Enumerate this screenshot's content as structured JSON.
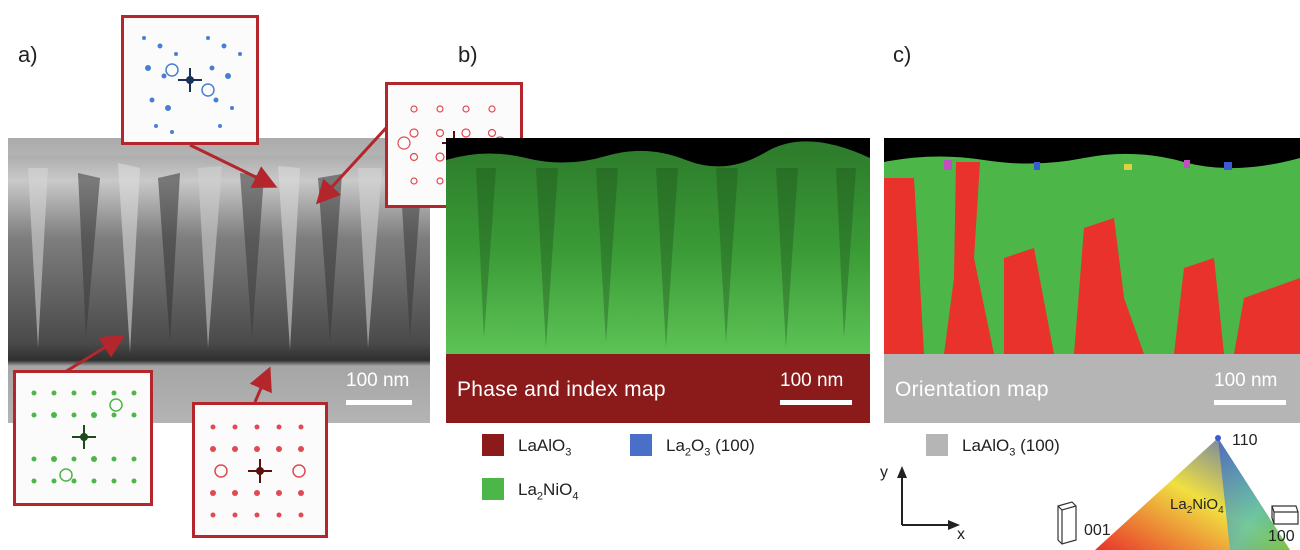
{
  "panels": {
    "a": {
      "label": "a)",
      "scalebar": "100 nm"
    },
    "b": {
      "label": "b)",
      "band_title": "Phase and index map",
      "scalebar": "100 nm"
    },
    "c": {
      "label": "c)",
      "band_title": "Orientation map",
      "scalebar": "100 nm"
    }
  },
  "legend_b": [
    {
      "name": "LaAlO",
      "sub": "3",
      "tail": "",
      "color": "#8b1a1a"
    },
    {
      "name": "La",
      "sub": "2",
      "mid": "O",
      "sub2": "3",
      "tail": " (100)",
      "color": "#4a6fc8"
    },
    {
      "name": "La",
      "sub": "2",
      "mid": "NiO",
      "sub2": "4",
      "tail": "",
      "color": "#4cb648"
    }
  ],
  "legend_c": {
    "name": "LaAlO",
    "sub": "3",
    "tail": " (100)",
    "color": "#b5b5b5"
  },
  "axes": {
    "y": "y",
    "x": "x"
  },
  "ipf": {
    "top": "110",
    "left": "001",
    "right": "100",
    "center_main": "La",
    "center_sub": "2",
    "center_mid": "NiO",
    "center_sub2": "4"
  },
  "colors": {
    "accent_red": "#b3262c",
    "band_b": "#8b1a1a",
    "band_c": "#b5b5b5",
    "green": "#4cb648",
    "red": "#e8322b",
    "blue": "#3b5bd0"
  }
}
